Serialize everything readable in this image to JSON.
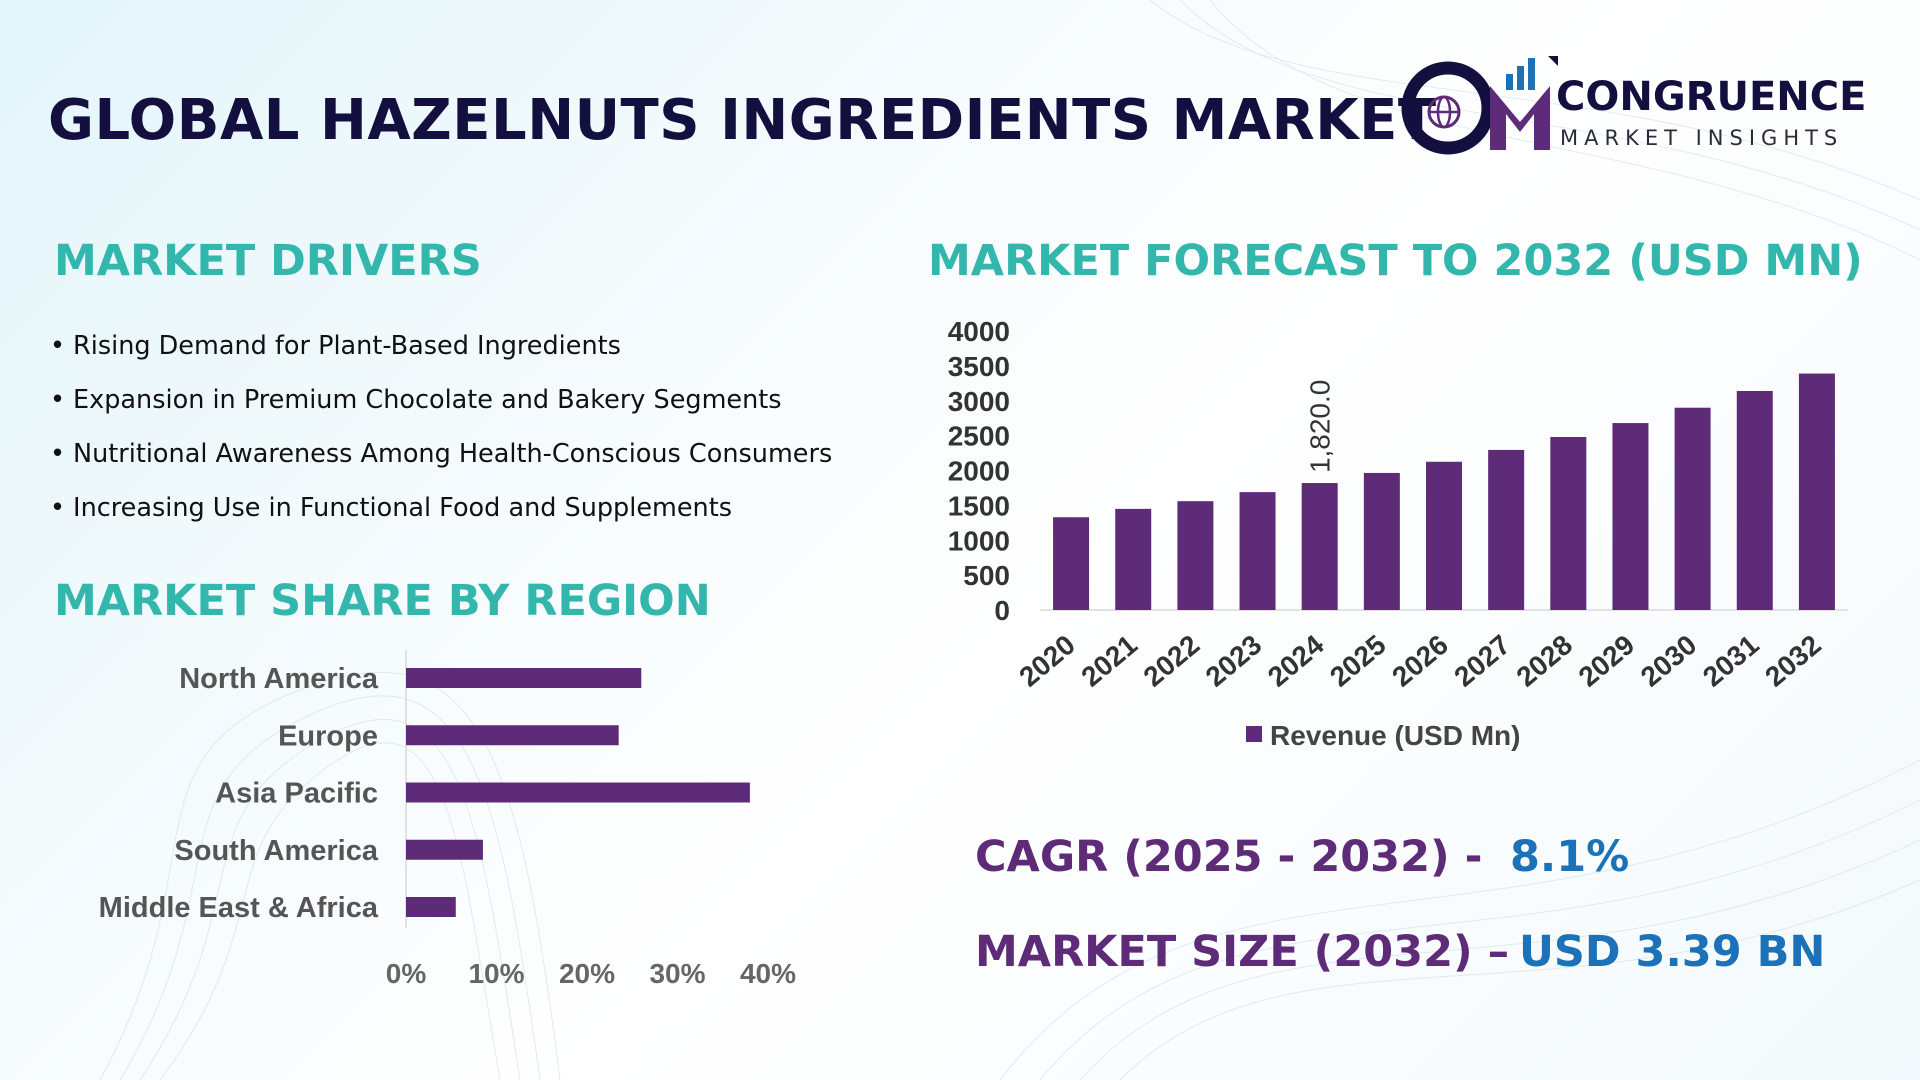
{
  "header": {
    "title": "GLOBAL HAZELNUTS INGREDIENTS MARKET",
    "logo_name": "CONGRUENCE",
    "logo_sub": "MARKET INSIGHTS",
    "logo_monogram": "CM"
  },
  "drivers": {
    "title": "MARKET DRIVERS",
    "items": [
      "Rising Demand for Plant-Based Ingredients",
      "Expansion in Premium Chocolate and Bakery Segments",
      "Nutritional Awareness Among Health-Conscious Consumers",
      "Increasing Use in Functional Food and Supplements"
    ]
  },
  "region": {
    "title": "MARKET SHARE BY REGION"
  },
  "forecast": {
    "title": "MARKET FORECAST TO 2032 (USD MN)"
  },
  "stats": {
    "cagr_label": "CAGR (2025 - 2032) -",
    "cagr_value": "8.1%",
    "size_label": "MARKET SIZE (2032) –",
    "size_value": "USD 3.39 BN"
  },
  "colors": {
    "bar": "#5e2b79",
    "accent_teal": "#33b7ad",
    "accent_blue": "#1b72b8",
    "navy": "#13103f"
  },
  "chart_data": [
    {
      "type": "bar",
      "orientation": "vertical",
      "title": "MARKET FORECAST TO 2032 (USD MN)",
      "categories": [
        "2020",
        "2021",
        "2022",
        "2023",
        "2024",
        "2025",
        "2026",
        "2027",
        "2028",
        "2029",
        "2030",
        "2031",
        "2032"
      ],
      "series": [
        {
          "name": "Revenue (USD Mn)",
          "values": [
            1330,
            1450,
            1560,
            1690,
            1820,
            1965,
            2125,
            2295,
            2480,
            2680,
            2900,
            3140,
            3390
          ]
        }
      ],
      "data_labels": [
        {
          "index": 4,
          "text": "1,820.0"
        }
      ],
      "yticks": [
        "0",
        "500",
        "1000",
        "1500",
        "2000",
        "2500",
        "3000",
        "3500",
        "4000"
      ],
      "ylim": [
        0,
        4000
      ],
      "legend": "bottom",
      "grid": false
    },
    {
      "type": "bar",
      "orientation": "horizontal",
      "title": "MARKET SHARE BY REGION",
      "categories": [
        "North America",
        "Europe",
        "Asia Pacific",
        "South America",
        "Middle East & Africa"
      ],
      "values": [
        26,
        23.5,
        38,
        8.5,
        5.5
      ],
      "xticks": [
        "0%",
        "10%",
        "20%",
        "30%",
        "40%"
      ],
      "xlim": [
        0,
        40
      ],
      "grid": false
    }
  ]
}
